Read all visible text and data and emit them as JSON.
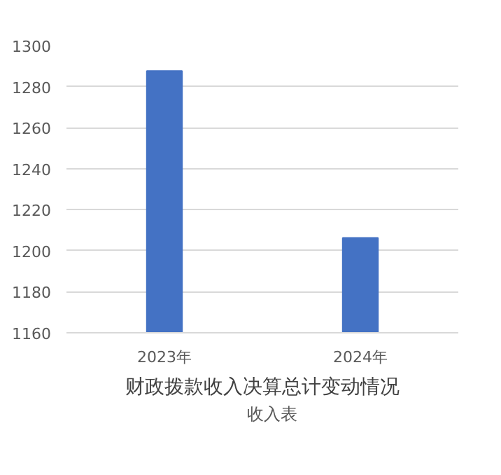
{
  "chart_data": {
    "type": "bar",
    "title": "财政拨款收入决算总计变动情况",
    "categories": [
      "2023年",
      "2024年"
    ],
    "series": [
      {
        "name": "收入表",
        "color": "#4472c4",
        "values": [
          1287.6,
          1206.3
        ]
      }
    ],
    "ylim": [
      1160,
      1300
    ],
    "yticks": [
      1160,
      1180,
      1200,
      1220,
      1240,
      1260,
      1280,
      1300
    ],
    "grid": "y",
    "legend": "bottom"
  }
}
